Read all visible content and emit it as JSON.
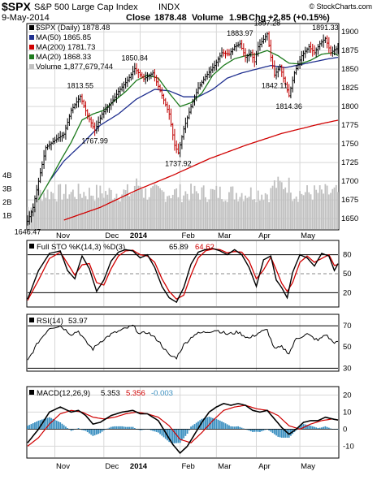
{
  "header": {
    "symbol": "$SPX",
    "name": "S&P 500 Large Cap Index",
    "exchange": "INDX",
    "date": "9-May-2014",
    "close_label": "Close",
    "close": "1878.48",
    "volume_label": "Volume",
    "volume": "1.9B",
    "chg_label": "Chg",
    "chg": "+2.85 (+0.15%)",
    "watermark": "© StockCharts.com"
  },
  "colors": {
    "price": "#000000",
    "ma50": "#1f2f8f",
    "ma200": "#d00000",
    "ma20": "#1d7a1d",
    "volume": "#c0c0c0",
    "sto_k": "#000000",
    "sto_d": "#d00000",
    "macd": "#000000",
    "signal": "#d00000",
    "histogram": "#3a8fc0",
    "grid": "#d8d8d8"
  },
  "chart_data": [
    {
      "type": "ohlc",
      "panel": "price",
      "legend": {
        "price": "$SPX (Daily) 1878.48",
        "ma50": "MA(50) 1865.85",
        "ma200": "MA(200) 1781.73",
        "ma20": "MA(20) 1868.33",
        "volume": "Volume 1,877,679,744"
      },
      "x_labels": [
        "Nov",
        "Dec",
        "2014",
        "Feb",
        "Mar",
        "Apr",
        "May"
      ],
      "ylim": [
        1636,
        1910
      ],
      "y_ticks": [
        1650,
        1675,
        1700,
        1725,
        1750,
        1775,
        1800,
        1825,
        1850,
        1875,
        1900
      ],
      "volume_ticks": [
        "1B",
        "2B",
        "3B",
        "4B"
      ],
      "price_keypoints": [
        [
          0,
          1646.47
        ],
        [
          3,
          1665
        ],
        [
          6,
          1700
        ],
        [
          10,
          1745
        ],
        [
          15,
          1755
        ],
        [
          20,
          1763
        ],
        [
          24,
          1795
        ],
        [
          29,
          1813.55
        ],
        [
          33,
          1788
        ],
        [
          37,
          1767.99
        ],
        [
          41,
          1790
        ],
        [
          46,
          1805
        ],
        [
          50,
          1820
        ],
        [
          55,
          1835
        ],
        [
          59,
          1850.84
        ],
        [
          64,
          1837
        ],
        [
          69,
          1845
        ],
        [
          74,
          1815
        ],
        [
          78,
          1790
        ],
        [
          81,
          1748
        ],
        [
          83,
          1737.92
        ],
        [
          86,
          1770
        ],
        [
          90,
          1800
        ],
        [
          94,
          1825
        ],
        [
          98,
          1840
        ],
        [
          103,
          1855
        ],
        [
          107,
          1872
        ],
        [
          111,
          1870
        ],
        [
          114,
          1880
        ],
        [
          117,
          1883.97
        ],
        [
          120,
          1866
        ],
        [
          123,
          1872
        ],
        [
          125,
          1860
        ],
        [
          127,
          1880
        ],
        [
          130,
          1890
        ],
        [
          132,
          1897.28
        ],
        [
          134,
          1866
        ],
        [
          136,
          1842.11
        ],
        [
          139,
          1854
        ],
        [
          142,
          1830
        ],
        [
          144,
          1814.36
        ],
        [
          147,
          1845
        ],
        [
          151,
          1868
        ],
        [
          155,
          1880
        ],
        [
          158,
          1872
        ],
        [
          161,
          1884
        ],
        [
          164,
          1891.33
        ],
        [
          167,
          1872
        ],
        [
          169,
          1876
        ],
        [
          171,
          1878.48
        ]
      ],
      "ma50_keypoints": [
        [
          12,
          1700
        ],
        [
          20,
          1727
        ],
        [
          30,
          1750
        ],
        [
          40,
          1775
        ],
        [
          50,
          1790
        ],
        [
          60,
          1810
        ],
        [
          70,
          1823
        ],
        [
          78,
          1821
        ],
        [
          86,
          1813
        ],
        [
          94,
          1813
        ],
        [
          102,
          1823
        ],
        [
          110,
          1838
        ],
        [
          118,
          1845
        ],
        [
          126,
          1850
        ],
        [
          134,
          1855
        ],
        [
          142,
          1852
        ],
        [
          150,
          1856
        ],
        [
          158,
          1860
        ],
        [
          166,
          1864
        ],
        [
          171,
          1865.85
        ]
      ],
      "ma200_keypoints": [
        [
          20,
          1648
        ],
        [
          40,
          1665
        ],
        [
          60,
          1688
        ],
        [
          80,
          1708
        ],
        [
          100,
          1730
        ],
        [
          120,
          1748
        ],
        [
          140,
          1764
        ],
        [
          160,
          1776
        ],
        [
          171,
          1781.73
        ]
      ],
      "ma20_keypoints": [
        [
          6,
          1675
        ],
        [
          12,
          1700
        ],
        [
          18,
          1727
        ],
        [
          24,
          1752
        ],
        [
          30,
          1782
        ],
        [
          36,
          1790
        ],
        [
          42,
          1795
        ],
        [
          48,
          1808
        ],
        [
          54,
          1820
        ],
        [
          60,
          1835
        ],
        [
          66,
          1842
        ],
        [
          72,
          1838
        ],
        [
          78,
          1818
        ],
        [
          84,
          1800
        ],
        [
          90,
          1805
        ],
        [
          96,
          1818
        ],
        [
          102,
          1842
        ],
        [
          108,
          1855
        ],
        [
          114,
          1864
        ],
        [
          120,
          1868
        ],
        [
          126,
          1870
        ],
        [
          132,
          1875
        ],
        [
          138,
          1868
        ],
        [
          144,
          1858
        ],
        [
          150,
          1857
        ],
        [
          156,
          1862
        ],
        [
          162,
          1870
        ],
        [
          168,
          1872
        ],
        [
          171,
          1868.33
        ]
      ],
      "price_labels": [
        {
          "i": 0,
          "text": "1646.47",
          "pos": "below"
        },
        {
          "i": 29,
          "text": "1813.55",
          "pos": "above"
        },
        {
          "i": 37,
          "text": "1767.99",
          "pos": "below"
        },
        {
          "i": 59,
          "text": "1850.84",
          "pos": "above"
        },
        {
          "i": 83,
          "text": "1737.92",
          "pos": "below"
        },
        {
          "i": 117,
          "text": "1883.97",
          "pos": "above"
        },
        {
          "i": 132,
          "text": "1897.28",
          "pos": "above"
        },
        {
          "i": 136,
          "text": "1842.11",
          "pos": "below"
        },
        {
          "i": 144,
          "text": "1814.36",
          "pos": "below"
        },
        {
          "i": 164,
          "text": "1891.33",
          "pos": "above"
        }
      ]
    },
    {
      "type": "line",
      "panel": "full-stochastic",
      "legend": "Full STO %K(14,3) %D(3) 65.89, 64.62",
      "legend_parts": {
        "title": "Full STO %K(14,3) %D(3)",
        "k": "65.89",
        "d": "64.62"
      },
      "ylim": [
        0,
        100
      ],
      "y_ticks": [
        20,
        50,
        80
      ],
      "k_keypoints": [
        [
          0,
          10
        ],
        [
          6,
          55
        ],
        [
          12,
          82
        ],
        [
          18,
          86
        ],
        [
          22,
          55
        ],
        [
          26,
          42
        ],
        [
          30,
          78
        ],
        [
          34,
          58
        ],
        [
          38,
          22
        ],
        [
          42,
          40
        ],
        [
          46,
          70
        ],
        [
          50,
          84
        ],
        [
          54,
          88
        ],
        [
          58,
          86
        ],
        [
          62,
          75
        ],
        [
          66,
          80
        ],
        [
          70,
          60
        ],
        [
          74,
          30
        ],
        [
          78,
          12
        ],
        [
          82,
          5
        ],
        [
          86,
          28
        ],
        [
          90,
          65
        ],
        [
          94,
          84
        ],
        [
          98,
          88
        ],
        [
          102,
          90
        ],
        [
          106,
          86
        ],
        [
          110,
          80
        ],
        [
          114,
          88
        ],
        [
          118,
          80
        ],
        [
          122,
          60
        ],
        [
          126,
          30
        ],
        [
          130,
          72
        ],
        [
          134,
          78
        ],
        [
          137,
          40
        ],
        [
          140,
          28
        ],
        [
          143,
          12
        ],
        [
          146,
          52
        ],
        [
          150,
          80
        ],
        [
          154,
          75
        ],
        [
          158,
          62
        ],
        [
          162,
          82
        ],
        [
          166,
          78
        ],
        [
          169,
          55
        ],
        [
          171,
          65.89
        ]
      ],
      "d_keypoints": [
        [
          0,
          8
        ],
        [
          6,
          40
        ],
        [
          12,
          74
        ],
        [
          18,
          84
        ],
        [
          22,
          66
        ],
        [
          26,
          48
        ],
        [
          30,
          64
        ],
        [
          34,
          66
        ],
        [
          38,
          36
        ],
        [
          42,
          32
        ],
        [
          46,
          58
        ],
        [
          50,
          78
        ],
        [
          54,
          86
        ],
        [
          58,
          87
        ],
        [
          62,
          80
        ],
        [
          66,
          78
        ],
        [
          70,
          68
        ],
        [
          74,
          42
        ],
        [
          78,
          22
        ],
        [
          82,
          10
        ],
        [
          86,
          16
        ],
        [
          90,
          48
        ],
        [
          94,
          75
        ],
        [
          98,
          86
        ],
        [
          102,
          89
        ],
        [
          106,
          88
        ],
        [
          110,
          83
        ],
        [
          114,
          85
        ],
        [
          118,
          84
        ],
        [
          122,
          70
        ],
        [
          126,
          42
        ],
        [
          130,
          56
        ],
        [
          134,
          76
        ],
        [
          137,
          56
        ],
        [
          140,
          35
        ],
        [
          143,
          22
        ],
        [
          146,
          36
        ],
        [
          150,
          68
        ],
        [
          154,
          78
        ],
        [
          158,
          68
        ],
        [
          162,
          74
        ],
        [
          166,
          80
        ],
        [
          169,
          63
        ],
        [
          171,
          64.62
        ]
      ]
    },
    {
      "type": "line",
      "panel": "rsi",
      "legend": "RSI(14) 53.97",
      "legend_parts": {
        "title": "RSI(14)",
        "value": "53.97"
      },
      "ylim": [
        28,
        80
      ],
      "y_ticks": [
        30,
        50,
        70
      ],
      "reference_lines": [
        70,
        30
      ],
      "keypoints": [
        [
          0,
          37
        ],
        [
          6,
          55
        ],
        [
          12,
          68
        ],
        [
          18,
          70
        ],
        [
          24,
          62
        ],
        [
          28,
          65
        ],
        [
          32,
          55
        ],
        [
          36,
          48
        ],
        [
          40,
          55
        ],
        [
          46,
          62
        ],
        [
          52,
          66
        ],
        [
          58,
          70
        ],
        [
          62,
          62
        ],
        [
          66,
          64
        ],
        [
          72,
          56
        ],
        [
          78,
          42
        ],
        [
          82,
          40
        ],
        [
          86,
          52
        ],
        [
          92,
          62
        ],
        [
          98,
          64
        ],
        [
          104,
          66
        ],
        [
          110,
          62
        ],
        [
          116,
          64
        ],
        [
          122,
          58
        ],
        [
          128,
          64
        ],
        [
          132,
          66
        ],
        [
          136,
          48
        ],
        [
          140,
          50
        ],
        [
          144,
          44
        ],
        [
          148,
          58
        ],
        [
          154,
          62
        ],
        [
          160,
          56
        ],
        [
          164,
          62
        ],
        [
          168,
          55
        ],
        [
          171,
          53.97
        ]
      ]
    },
    {
      "type": "line",
      "panel": "macd",
      "legend": "MACD(12,26,9) 5.353, 5.356, -0.003",
      "legend_parts": {
        "title": "MACD(12,26,9)",
        "macd": "5.353",
        "signal": "5.356",
        "hist": "-0.003"
      },
      "ylim": [
        -16,
        24
      ],
      "y_ticks": [
        -10,
        0,
        10,
        20
      ],
      "x_labels": [
        "Nov",
        "Dec",
        "2014",
        "Feb",
        "Mar",
        "Apr",
        "May"
      ],
      "macd_keypoints": [
        [
          0,
          -8
        ],
        [
          6,
          0
        ],
        [
          12,
          10
        ],
        [
          18,
          13
        ],
        [
          24,
          10
        ],
        [
          28,
          11
        ],
        [
          32,
          8
        ],
        [
          36,
          3
        ],
        [
          40,
          4
        ],
        [
          46,
          8
        ],
        [
          52,
          10
        ],
        [
          58,
          11
        ],
        [
          62,
          9
        ],
        [
          66,
          9
        ],
        [
          72,
          5
        ],
        [
          76,
          -2
        ],
        [
          80,
          -9
        ],
        [
          84,
          -14
        ],
        [
          88,
          -10
        ],
        [
          92,
          -3
        ],
        [
          96,
          4
        ],
        [
          100,
          10
        ],
        [
          104,
          13
        ],
        [
          108,
          15
        ],
        [
          112,
          14
        ],
        [
          116,
          15
        ],
        [
          120,
          14
        ],
        [
          124,
          11
        ],
        [
          128,
          10
        ],
        [
          132,
          11
        ],
        [
          136,
          6
        ],
        [
          140,
          1
        ],
        [
          144,
          -3
        ],
        [
          148,
          0
        ],
        [
          152,
          4
        ],
        [
          156,
          5
        ],
        [
          160,
          5
        ],
        [
          164,
          7
        ],
        [
          168,
          6
        ],
        [
          171,
          5.353
        ]
      ],
      "signal_keypoints": [
        [
          0,
          -10
        ],
        [
          6,
          -5
        ],
        [
          12,
          3
        ],
        [
          18,
          9
        ],
        [
          24,
          11
        ],
        [
          30,
          10
        ],
        [
          36,
          7
        ],
        [
          42,
          6
        ],
        [
          48,
          7
        ],
        [
          54,
          9
        ],
        [
          60,
          10
        ],
        [
          66,
          9
        ],
        [
          72,
          7
        ],
        [
          78,
          2
        ],
        [
          84,
          -6
        ],
        [
          90,
          -8
        ],
        [
          96,
          -2
        ],
        [
          102,
          5
        ],
        [
          108,
          11
        ],
        [
          114,
          13
        ],
        [
          120,
          14
        ],
        [
          126,
          12
        ],
        [
          132,
          11
        ],
        [
          138,
          8
        ],
        [
          144,
          2
        ],
        [
          150,
          0
        ],
        [
          156,
          3
        ],
        [
          162,
          5
        ],
        [
          168,
          6
        ],
        [
          171,
          5.356
        ]
      ]
    }
  ]
}
